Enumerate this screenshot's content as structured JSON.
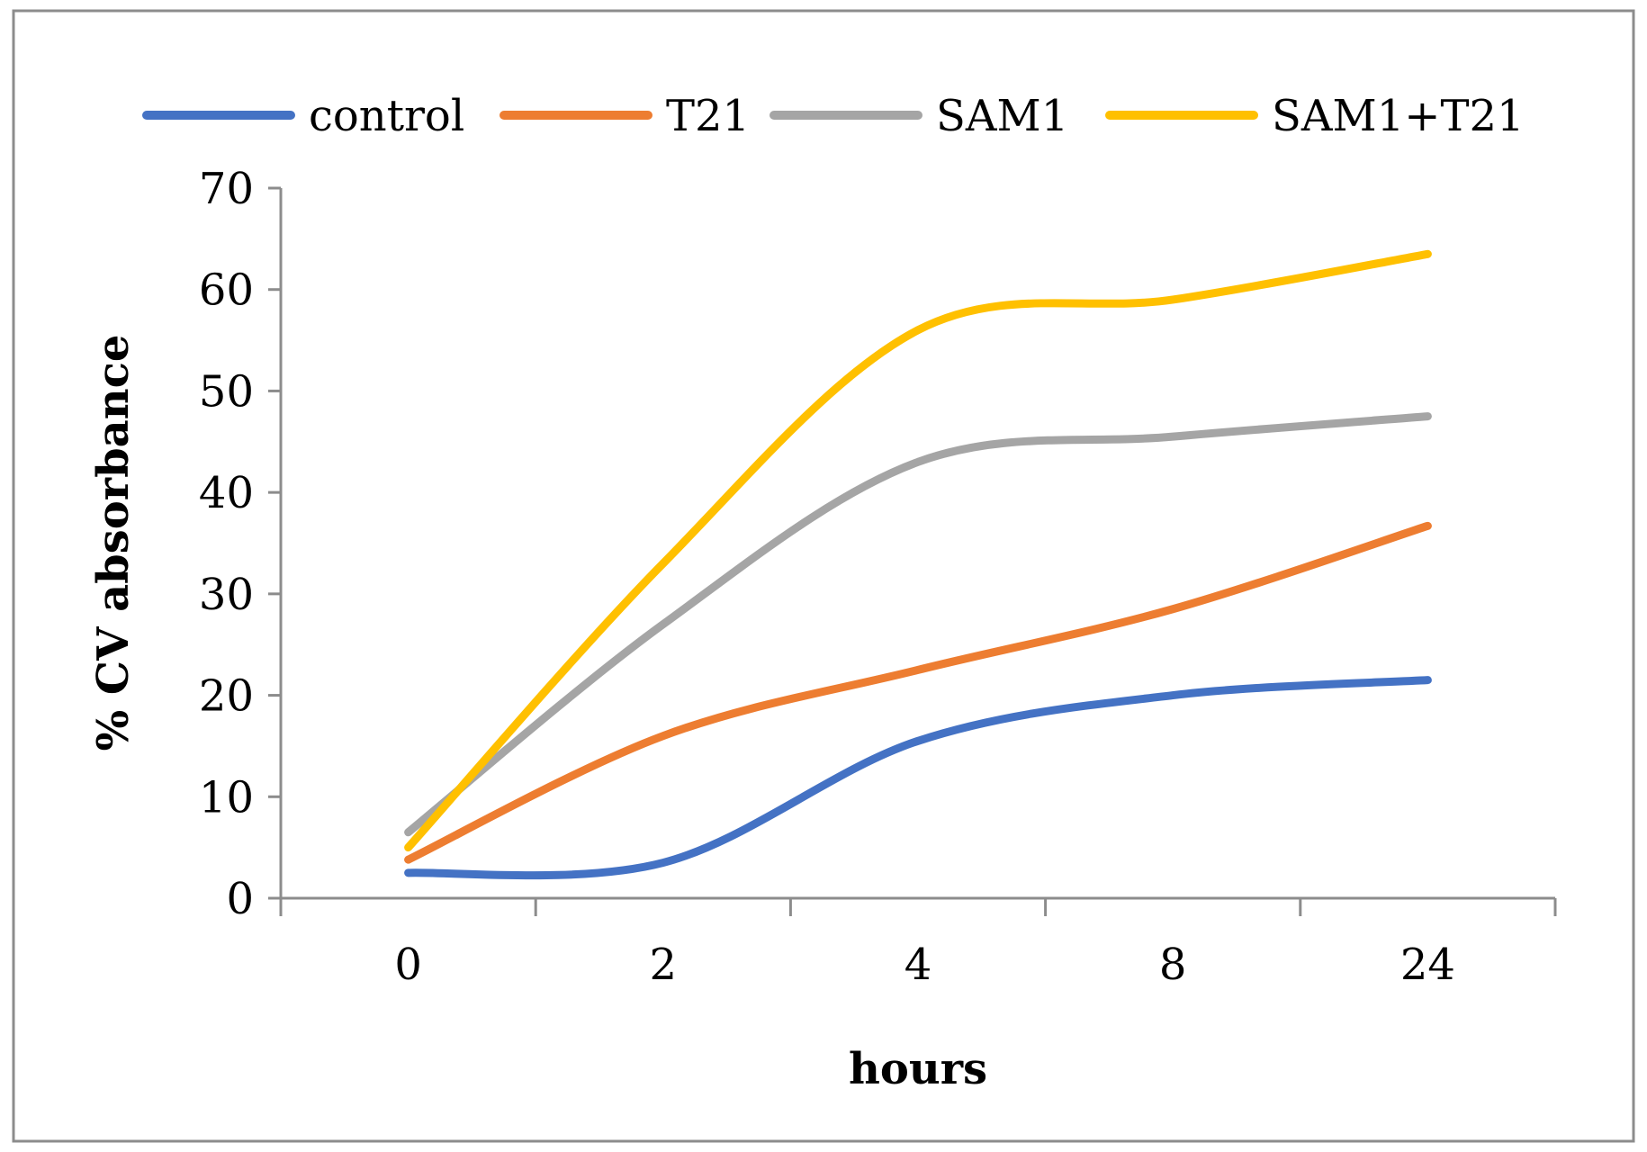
{
  "chart_data": {
    "type": "line",
    "title": "",
    "xlabel": "hours",
    "ylabel": "% CV absorbance",
    "categories": [
      "0",
      "2",
      "4",
      "8",
      "24"
    ],
    "ylim": [
      0,
      70
    ],
    "yticks": [
      0,
      10,
      20,
      30,
      40,
      50,
      60,
      70
    ],
    "grid": false,
    "legend": "top",
    "smooth": true,
    "series": [
      {
        "name": "control",
        "color": "#4472C4",
        "values": [
          2.5,
          3.5,
          15.5,
          20.0,
          21.5
        ]
      },
      {
        "name": "T21",
        "color": "#ED7D31",
        "values": [
          3.8,
          16.0,
          22.5,
          28.5,
          36.7
        ]
      },
      {
        "name": "SAM1",
        "color": "#A5A5A5",
        "values": [
          6.5,
          27.0,
          43.0,
          45.5,
          47.5
        ]
      },
      {
        "name": "SAM1+T21",
        "color": "#FFC000",
        "values": [
          5.0,
          33.0,
          56.0,
          59.0,
          63.5
        ]
      }
    ]
  }
}
